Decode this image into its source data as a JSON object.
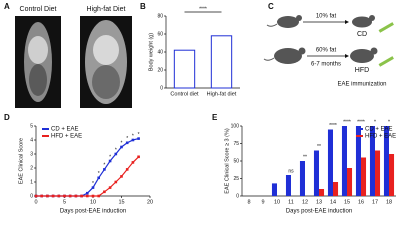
{
  "figure": {
    "panel_labels": [
      "A",
      "B",
      "C",
      "D",
      "E"
    ],
    "panel_a": {
      "labels": [
        "Control Diet",
        "High-fat Diet"
      ]
    },
    "panel_c": {
      "low_fat": "10% fat",
      "high_fat": "60% fat",
      "duration": "6-7 months",
      "cd": "CD",
      "hfd": "HFD",
      "immunization": "EAE immunization"
    }
  },
  "chart_data": [
    {
      "type": "bar",
      "categories": [
        "Control diet",
        "High-fat diet"
      ],
      "values": [
        42,
        58
      ],
      "color": "#1f2fd6",
      "ylabel": "Body weight (g)",
      "ylim": [
        0,
        80
      ],
      "yticks": [
        0,
        20,
        40,
        60,
        80
      ],
      "annotation": "****"
    },
    {
      "type": "line",
      "x": [
        0,
        1,
        2,
        3,
        4,
        5,
        6,
        7,
        8,
        9,
        10,
        11,
        12,
        13,
        14,
        15,
        16,
        17,
        18
      ],
      "series": [
        {
          "name": "CD + EAE",
          "color": "#1f2fd6",
          "values": [
            0,
            0,
            0,
            0,
            0,
            0,
            0,
            0,
            0,
            0.2,
            0.6,
            1.3,
            1.9,
            2.5,
            3.0,
            3.5,
            3.8,
            4.0,
            4.1
          ]
        },
        {
          "name": "HFD + EAE",
          "color": "#e8211f",
          "values": [
            0,
            0,
            0,
            0,
            0,
            0,
            0,
            0,
            0,
            0,
            0,
            0,
            0.3,
            0.6,
            1.0,
            1.4,
            1.9,
            2.4,
            2.8
          ]
        }
      ],
      "significance": [
        null,
        null,
        null,
        null,
        null,
        null,
        null,
        null,
        null,
        null,
        "*",
        "*",
        "*",
        "*",
        "*",
        "*",
        "*",
        "*",
        "*"
      ],
      "xlabel": "Days post-EAE induction",
      "ylabel": "EAE Clinical Score",
      "xlim": [
        0,
        20
      ],
      "xticks": [
        0,
        5,
        10,
        15,
        20
      ],
      "ylim": [
        0,
        5
      ],
      "yticks": [
        0,
        1,
        2,
        3,
        4,
        5
      ],
      "legend": "upper left"
    },
    {
      "type": "bar",
      "categories": [
        "8",
        "9",
        "10",
        "11",
        "12",
        "13",
        "14",
        "15",
        "16",
        "17",
        "18"
      ],
      "series": [
        {
          "name": "CD + EAE",
          "color": "#1f2fd6",
          "values": [
            0,
            0,
            18,
            30,
            50,
            65,
            95,
            100,
            100,
            100,
            100
          ]
        },
        {
          "name": "HFD + EAE",
          "color": "#e8211f",
          "values": [
            0,
            0,
            0,
            0,
            0,
            10,
            20,
            40,
            55,
            65,
            60
          ]
        }
      ],
      "significance": [
        null,
        null,
        null,
        "ns",
        "**",
        "**",
        "****",
        "****",
        "****",
        "*",
        "*"
      ],
      "xlabel": "Days post-EAE induction",
      "ylabel": "EAE Clinical Score ≥ 3 (%)",
      "ylim": [
        0,
        100
      ],
      "yticks": [
        0,
        25,
        50,
        75,
        100
      ],
      "legend": "upper right"
    }
  ]
}
